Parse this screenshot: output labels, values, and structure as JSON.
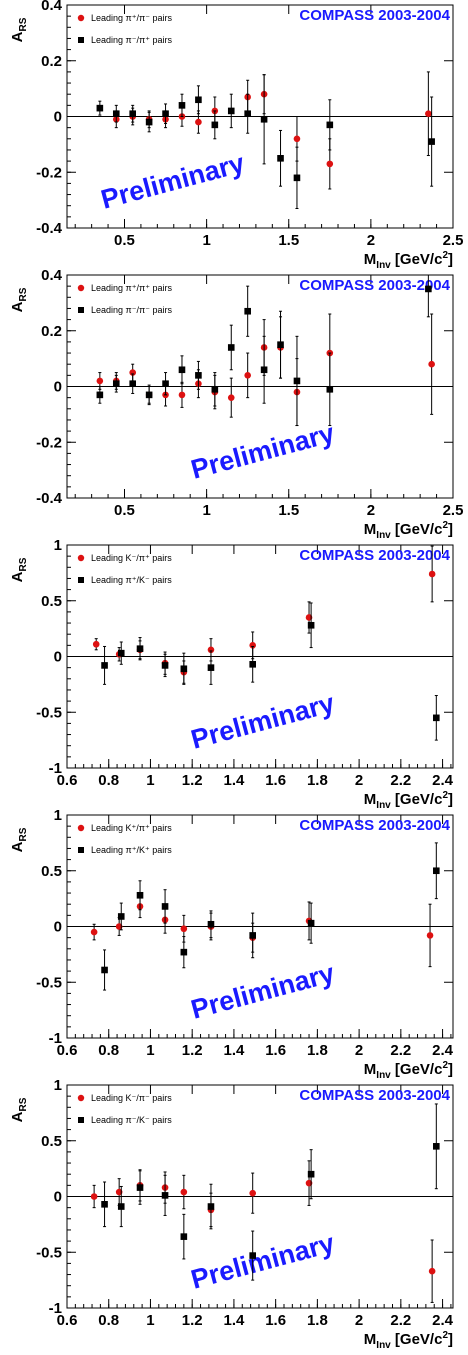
{
  "chart_data": [
    {
      "type": "scatter",
      "banner": "COMPASS 2003-2004",
      "watermark": "Preliminary",
      "xlabel": "M",
      "xlabel_sub": "Inv",
      "xlabel_unit_pre": " [GeV/c",
      "xlabel_unit_sup": "2",
      "xlabel_unit_post": "]",
      "ylabel": "A",
      "ylabel_sub": "RS",
      "xlim": [
        0.15,
        2.5
      ],
      "ylim": [
        -0.4,
        0.4
      ],
      "xticks": [
        0.5,
        1,
        1.5,
        2,
        2.5
      ],
      "xtick_labels": [
        "0.5",
        "1",
        "1.5",
        "2",
        "2.5"
      ],
      "yticks": [
        -0.4,
        -0.2,
        0,
        0.2,
        0.4
      ],
      "ytick_labels": [
        "-0.4",
        "-0.2",
        "0",
        "0.2",
        "0.4"
      ],
      "legend_position": "top-left",
      "series": [
        {
          "name": "Leading π⁺/π⁻ pairs",
          "marker": "circle",
          "color": "#dd1111",
          "points": [
            [
              0.45,
              -0.01,
              0.03
            ],
            [
              0.55,
              0.0,
              0.03
            ],
            [
              0.65,
              -0.01,
              0.03
            ],
            [
              0.75,
              -0.01,
              0.03
            ],
            [
              0.85,
              0.0,
              0.035
            ],
            [
              0.95,
              -0.02,
              0.04
            ],
            [
              1.05,
              0.02,
              0.05
            ],
            [
              1.25,
              0.07,
              0.06
            ],
            [
              1.35,
              0.08,
              0.07
            ],
            [
              1.55,
              -0.08,
              0.08
            ],
            [
              1.75,
              -0.17,
              0.09
            ],
            [
              2.35,
              0.01,
              0.15
            ]
          ]
        },
        {
          "name": "Leading π⁻/π⁺ pairs",
          "marker": "square",
          "color": "#000000",
          "points": [
            [
              0.35,
              0.03,
              0.025
            ],
            [
              0.45,
              0.01,
              0.03
            ],
            [
              0.55,
              0.01,
              0.03
            ],
            [
              0.65,
              -0.02,
              0.035
            ],
            [
              0.75,
              0.01,
              0.035
            ],
            [
              0.85,
              0.04,
              0.04
            ],
            [
              0.95,
              0.06,
              0.05
            ],
            [
              1.05,
              -0.03,
              0.05
            ],
            [
              1.15,
              0.02,
              0.06
            ],
            [
              1.25,
              0.01,
              0.07
            ],
            [
              1.35,
              -0.01,
              0.16
            ],
            [
              1.45,
              -0.15,
              0.1
            ],
            [
              1.55,
              -0.22,
              0.11
            ],
            [
              1.75,
              -0.03,
              0.09
            ],
            [
              2.37,
              -0.09,
              0.16
            ]
          ]
        }
      ]
    },
    {
      "type": "scatter",
      "banner": "COMPASS 2003-2004",
      "watermark": "Preliminary",
      "xlabel": "M",
      "xlabel_sub": "Inv",
      "xlabel_unit_pre": " [GeV/c",
      "xlabel_unit_sup": "2",
      "xlabel_unit_post": "]",
      "ylabel": "A",
      "ylabel_sub": "RS",
      "xlim": [
        0.15,
        2.5
      ],
      "ylim": [
        -0.4,
        0.4
      ],
      "xticks": [
        0.5,
        1,
        1.5,
        2,
        2.5
      ],
      "xtick_labels": [
        "0.5",
        "1",
        "1.5",
        "2",
        "2.5"
      ],
      "yticks": [
        -0.4,
        -0.2,
        0,
        0.2,
        0.4
      ],
      "ytick_labels": [
        "-0.4",
        "-0.2",
        "0",
        "0.2",
        "0.4"
      ],
      "legend_position": "top-left",
      "series": [
        {
          "name": "Leading π⁺/π⁺ pairs",
          "marker": "circle",
          "color": "#dd1111",
          "points": [
            [
              0.35,
              0.02,
              0.03
            ],
            [
              0.45,
              0.02,
              0.03
            ],
            [
              0.55,
              0.05,
              0.03
            ],
            [
              0.65,
              -0.03,
              0.03
            ],
            [
              0.75,
              -0.03,
              0.04
            ],
            [
              0.85,
              -0.03,
              0.045
            ],
            [
              0.95,
              0.01,
              0.05
            ],
            [
              1.05,
              -0.02,
              0.06
            ],
            [
              1.15,
              -0.04,
              0.07
            ],
            [
              1.25,
              0.04,
              0.08
            ],
            [
              1.35,
              0.14,
              0.1
            ],
            [
              1.45,
              0.14,
              0.11
            ],
            [
              1.55,
              -0.02,
              0.12
            ],
            [
              1.75,
              0.12,
              0.14
            ],
            [
              2.37,
              0.08,
              0.18
            ]
          ]
        },
        {
          "name": "Leading π⁻/π⁻ pairs",
          "marker": "square",
          "color": "#000000",
          "points": [
            [
              0.35,
              -0.03,
              0.03
            ],
            [
              0.45,
              0.01,
              0.03
            ],
            [
              0.55,
              0.01,
              0.035
            ],
            [
              0.65,
              -0.03,
              0.035
            ],
            [
              0.75,
              0.01,
              0.04
            ],
            [
              0.85,
              0.06,
              0.05
            ],
            [
              0.95,
              0.04,
              0.05
            ],
            [
              1.05,
              -0.01,
              0.06
            ],
            [
              1.15,
              0.14,
              0.08
            ],
            [
              1.25,
              0.27,
              0.09
            ],
            [
              1.35,
              0.06,
              0.12
            ],
            [
              1.45,
              0.15,
              0.12
            ],
            [
              1.55,
              0.02,
              0.16
            ],
            [
              1.75,
              -0.01,
              0.13
            ],
            [
              2.35,
              0.35,
              0.1
            ]
          ]
        }
      ]
    },
    {
      "type": "scatter",
      "banner": "COMPASS 2003-2004",
      "watermark": "Preliminary",
      "xlabel": "M",
      "xlabel_sub": "Inv",
      "xlabel_unit_pre": " [GeV/c",
      "xlabel_unit_sup": "2",
      "xlabel_unit_post": "]",
      "ylabel": "A",
      "ylabel_sub": "RS",
      "xlim": [
        0.6,
        2.45
      ],
      "ylim": [
        -1,
        1
      ],
      "xticks": [
        0.6,
        0.8,
        1,
        1.2,
        1.4,
        1.6,
        1.8,
        2,
        2.2,
        2.4
      ],
      "xtick_labels": [
        "0.6",
        "0.8",
        "1",
        "1.2",
        "1.4",
        "1.6",
        "1.8",
        "2",
        "2.2",
        "2.4"
      ],
      "yticks": [
        -1,
        -0.5,
        0,
        0.5,
        1
      ],
      "ytick_labels": [
        "-1",
        "-0.5",
        "0",
        "0.5",
        "1"
      ],
      "legend_position": "top-left",
      "series": [
        {
          "name": "Leading K⁻/π⁺ pairs",
          "marker": "circle",
          "color": "#dd1111",
          "points": [
            [
              0.74,
              0.11,
              0.05
            ],
            [
              0.85,
              0.02,
              0.06
            ],
            [
              0.95,
              0.06,
              0.08
            ],
            [
              1.07,
              -0.06,
              0.1
            ],
            [
              1.16,
              -0.14,
              0.1
            ],
            [
              1.29,
              0.06,
              0.1
            ],
            [
              1.49,
              0.1,
              0.12
            ],
            [
              1.76,
              0.35,
              0.14
            ],
            [
              2.35,
              0.74,
              0.25
            ]
          ]
        },
        {
          "name": "Leading π⁺/K⁻ pairs",
          "marker": "square",
          "color": "#000000",
          "points": [
            [
              0.78,
              -0.08,
              0.17
            ],
            [
              0.86,
              0.03,
              0.1
            ],
            [
              0.95,
              0.07,
              0.1
            ],
            [
              1.07,
              -0.08,
              0.1
            ],
            [
              1.16,
              -0.11,
              0.14
            ],
            [
              1.29,
              -0.1,
              0.15
            ],
            [
              1.49,
              -0.07,
              0.16
            ],
            [
              1.77,
              0.28,
              0.2
            ],
            [
              2.37,
              -0.55,
              0.2
            ]
          ]
        }
      ]
    },
    {
      "type": "scatter",
      "banner": "COMPASS 2003-2004",
      "watermark": "Preliminary",
      "xlabel": "M",
      "xlabel_sub": "Inv",
      "xlabel_unit_pre": " [GeV/c",
      "xlabel_unit_sup": "2",
      "xlabel_unit_post": "]",
      "ylabel": "A",
      "ylabel_sub": "RS",
      "xlim": [
        0.6,
        2.45
      ],
      "ylim": [
        -1,
        1
      ],
      "xticks": [
        0.6,
        0.8,
        1,
        1.2,
        1.4,
        1.6,
        1.8,
        2,
        2.2,
        2.4
      ],
      "xtick_labels": [
        "0.6",
        "0.8",
        "1",
        "1.2",
        "1.4",
        "1.6",
        "1.8",
        "2",
        "2.2",
        "2.4"
      ],
      "yticks": [
        -1,
        -0.5,
        0,
        0.5,
        1
      ],
      "ytick_labels": [
        "-1",
        "-0.5",
        "0",
        "0.5",
        "1"
      ],
      "legend_position": "top-left",
      "series": [
        {
          "name": "Leading K⁺/π⁺ pairs",
          "marker": "circle",
          "color": "#dd1111",
          "points": [
            [
              0.73,
              -0.05,
              0.07
            ],
            [
              0.85,
              0.0,
              0.08
            ],
            [
              0.95,
              0.18,
              0.1
            ],
            [
              1.07,
              0.06,
              0.12
            ],
            [
              1.16,
              -0.02,
              0.12
            ],
            [
              1.29,
              0.0,
              0.12
            ],
            [
              1.49,
              -0.1,
              0.13
            ],
            [
              1.76,
              0.05,
              0.17
            ],
            [
              2.34,
              -0.08,
              0.28
            ]
          ]
        },
        {
          "name": "Leading π⁺/K⁺ pairs",
          "marker": "square",
          "color": "#000000",
          "points": [
            [
              0.78,
              -0.39,
              0.18
            ],
            [
              0.86,
              0.09,
              0.12
            ],
            [
              0.95,
              0.28,
              0.13
            ],
            [
              1.07,
              0.18,
              0.15
            ],
            [
              1.16,
              -0.23,
              0.14
            ],
            [
              1.29,
              0.02,
              0.12
            ],
            [
              1.49,
              -0.08,
              0.2
            ],
            [
              1.77,
              0.03,
              0.18
            ],
            [
              2.37,
              0.5,
              0.25
            ]
          ]
        }
      ]
    },
    {
      "type": "scatter",
      "banner": "COMPASS 2003-2004",
      "watermark": "Preliminary",
      "xlabel": "M",
      "xlabel_sub": "Inv",
      "xlabel_unit_pre": " [GeV/c",
      "xlabel_unit_sup": "2",
      "xlabel_unit_post": "]",
      "ylabel": "A",
      "ylabel_sub": "RS",
      "xlim": [
        0.6,
        2.45
      ],
      "ylim": [
        -1,
        1
      ],
      "xticks": [
        0.6,
        0.8,
        1,
        1.2,
        1.4,
        1.6,
        1.8,
        2,
        2.2,
        2.4
      ],
      "xtick_labels": [
        "0.6",
        "0.8",
        "1",
        "1.2",
        "1.4",
        "1.6",
        "1.8",
        "2",
        "2.2",
        "2.4"
      ],
      "yticks": [
        -1,
        -0.5,
        0,
        0.5,
        1
      ],
      "ytick_labels": [
        "-1",
        "-0.5",
        "0",
        "0.5",
        "1"
      ],
      "legend_position": "top-left",
      "series": [
        {
          "name": "Leading K⁻/π⁻ pairs",
          "marker": "circle",
          "color": "#dd1111",
          "points": [
            [
              0.73,
              0.0,
              0.1
            ],
            [
              0.85,
              0.04,
              0.12
            ],
            [
              0.95,
              0.1,
              0.14
            ],
            [
              1.07,
              0.08,
              0.14
            ],
            [
              1.16,
              0.04,
              0.15
            ],
            [
              1.29,
              -0.12,
              0.15
            ],
            [
              1.49,
              0.03,
              0.18
            ],
            [
              1.76,
              0.12,
              0.2
            ],
            [
              2.35,
              -0.67,
              0.28
            ]
          ]
        },
        {
          "name": "Leading π⁻/K⁻ pairs",
          "marker": "square",
          "color": "#000000",
          "points": [
            [
              0.78,
              -0.07,
              0.2
            ],
            [
              0.86,
              -0.09,
              0.18
            ],
            [
              0.95,
              0.08,
              0.15
            ],
            [
              1.07,
              0.01,
              0.18
            ],
            [
              1.16,
              -0.36,
              0.2
            ],
            [
              1.29,
              -0.09,
              0.2
            ],
            [
              1.49,
              -0.53,
              0.22
            ],
            [
              1.77,
              0.2,
              0.22
            ],
            [
              2.37,
              0.45,
              0.38
            ]
          ]
        }
      ]
    }
  ]
}
